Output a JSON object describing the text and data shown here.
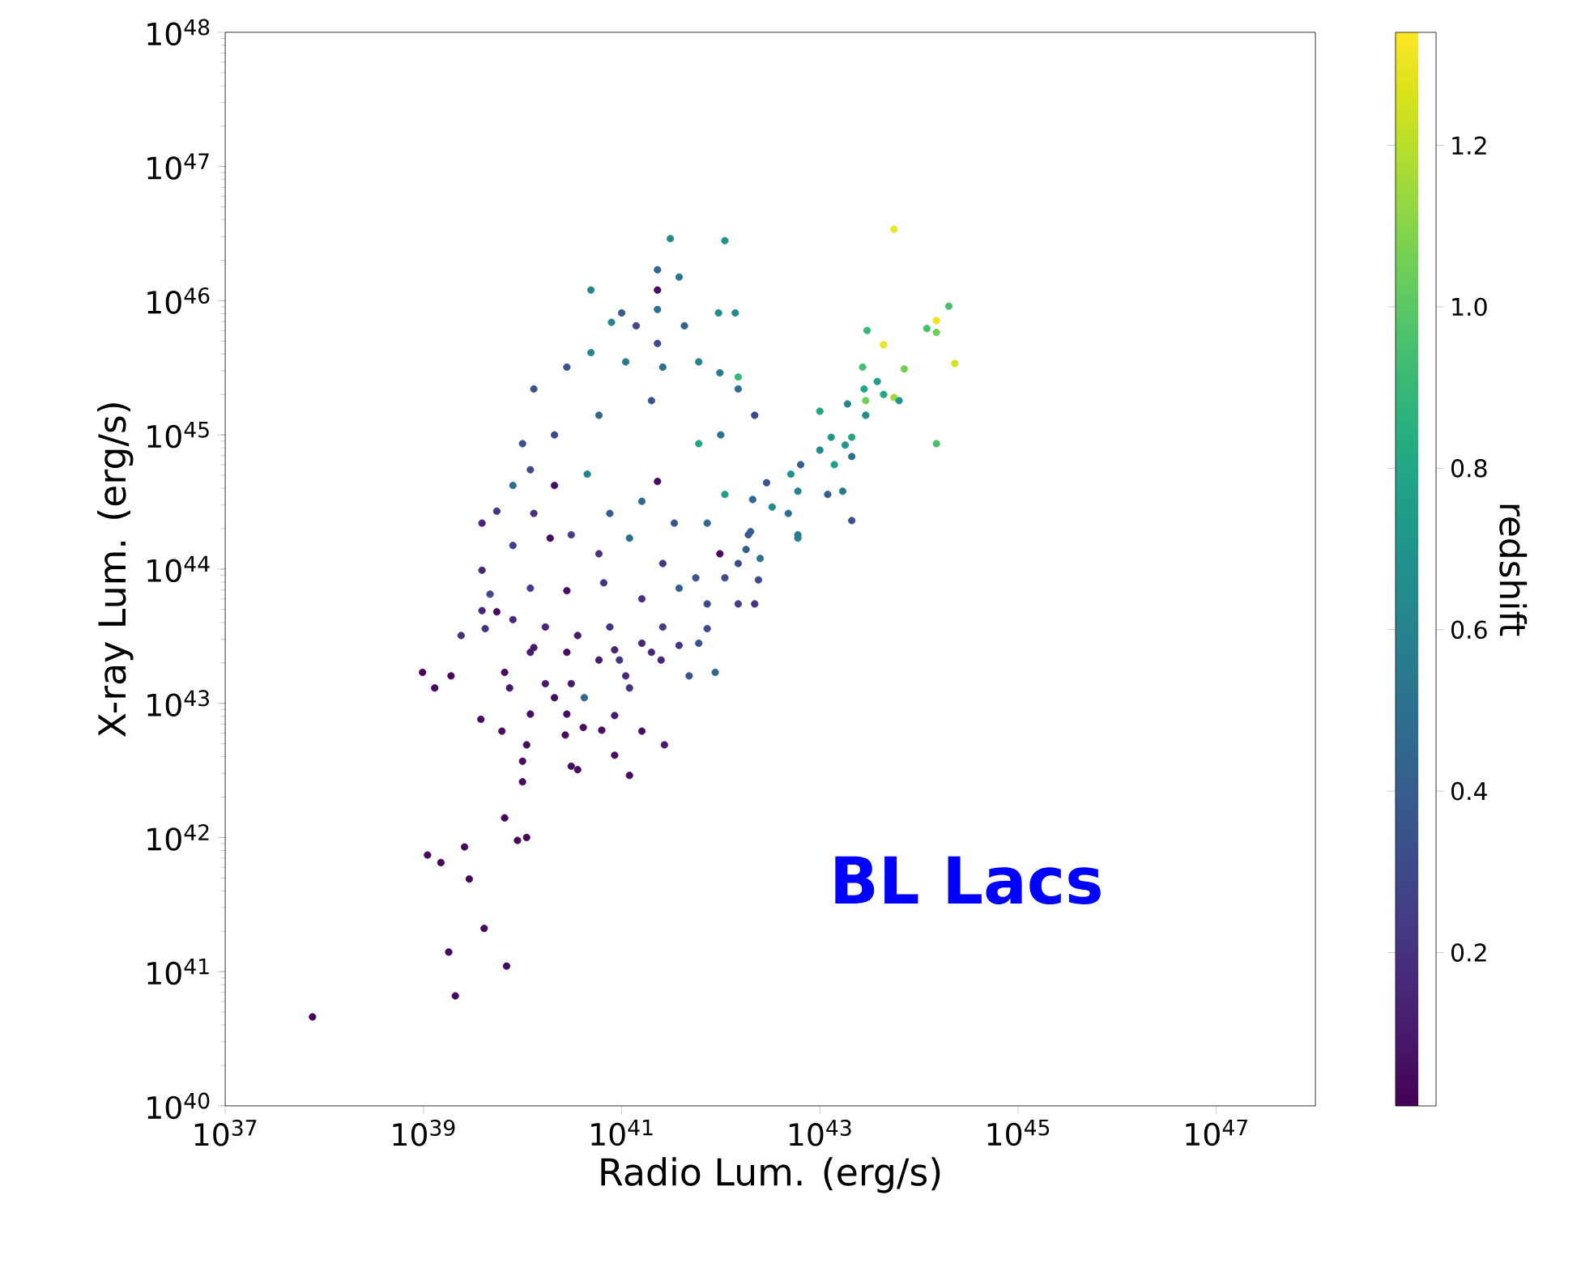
{
  "chart_data": {
    "type": "scatter",
    "xlabel": "Radio Lum. (erg/s)",
    "ylabel": "X-ray Lum. (erg/s)",
    "clabel": "redshift",
    "annotations": [
      "BL Lacs"
    ],
    "log": "xy",
    "marker": "circle",
    "xlim": [
      1e+37,
      1e+48
    ],
    "ylim": [
      1e+40,
      1e+48
    ],
    "xticks": [
      {
        "value": 1e+37,
        "label": "10$^{37}$"
      },
      {
        "value": 1e+39,
        "label": "10$^{39}$"
      },
      {
        "value": 1e+41,
        "label": "10$^{41}$"
      },
      {
        "value": 1e+43,
        "label": "10$^{43}$"
      },
      {
        "value": 1e+45,
        "label": "10$^{45}$"
      },
      {
        "value": 1e+47,
        "label": "10$^{47}$"
      }
    ],
    "yticks": [
      {
        "value": 1e+40,
        "label": "10$^{40}$"
      },
      {
        "value": 1e+41,
        "label": "10$^{41}$"
      },
      {
        "value": 1e+42,
        "label": "10$^{42}$"
      },
      {
        "value": 1e+43,
        "label": "10$^{43}$"
      },
      {
        "value": 1e+44,
        "label": "10$^{44}$"
      },
      {
        "value": 1e+45,
        "label": "10$^{45}$"
      },
      {
        "value": 1e+46,
        "label": "10$^{46}$"
      },
      {
        "value": 1e+47,
        "label": "10$^{47}$"
      },
      {
        "value": 1e+48,
        "label": "10$^{48}$"
      }
    ],
    "clim": [
      0.01,
      1.34
    ],
    "cticks": [
      0.2,
      0.4,
      0.6,
      0.8,
      {
        "value": 1.0,
        "label": "1.0"
      },
      1.2
    ],
    "x": [
      7.6e+37,
      2.1e+39,
      1.8e+39,
      6.9e+39,
      4.1e+39,
      1.1e+39,
      1.5e+39,
      2.6e+39,
      2.9e+39,
      6.6e+39,
      8.9e+39,
      1.1e+40,
      9.8e+38,
      1.3e+39,
      1.9e+39,
      6.6e+39,
      3.8e+39,
      6.2e+39,
      1.1e+40,
      1e+40,
      1e+40,
      2.7e+40,
      3.1e+40,
      3.6e+40,
      8.5e+40,
      1.2e+41,
      4.1e+40,
      6.3e+40,
      1.6e+41,
      2.7e+41,
      2.8e+40,
      1.2e+40,
      8.5e+40,
      4.8e+41,
      8.8e+41,
      4.2e+40,
      2.5e+41,
      1.7e+40,
      2.1e+40,
      3.1e+40,
      1.1e+41,
      1.2e+41,
      5.9e+40,
      9.5e+40,
      1.2e+40,
      7.4e+39,
      3.1e+41,
      1.1e+42,
      2.3e+41,
      2.3e+41,
      3.8e+41,
      4.9e+40,
      1e+41,
      2.3e+41,
      9.5e+41,
      1.4e+42,
      7.9e+40,
      1.4e+41,
      4.3e+41,
      2.3e+41,
      4.9e+40,
      2.8e+40,
      1.3e+40,
      1.5e+42,
      9.8e+41,
      6e+41,
      2.6e+41,
      1.1e+41,
      2.2e+42,
      1e+40,
      2.1e+40,
      5.9e+40,
      2e+41,
      6e+41,
      1e+42,
      6.4e+42,
      5.1e+42,
      6e+42,
      2.9e+42,
      1.1e+42,
      2.3e+41,
      4.5e+40,
      2.1e+40,
      8e+39,
      1.2e+40,
      3.9e+39,
      5.5e+39,
      1.3e+40,
      3.1e+40,
      7.6e+40,
      1.6e+41,
      3.4e+41,
      7.3e+41,
      1.9e+42,
      6e+42,
      9.8e+41,
      1.5e+42,
      3.9e+39,
      8e+39,
      1.9e+40,
      5.9e+40,
      1.2e+41,
      2.6e+41,
      5.6e+41,
      1.1e+42,
      2.4e+42,
      4.7e+39,
      1.2e+40,
      2.8e+40,
      6.6e+40,
      1.6e+41,
      3.8e+41,
      7.3e+41,
      1.5e+42,
      2.2e+42,
      3.9e+39,
      5.5e+39,
      8e+39,
      2.4e+39,
      4.2e+39,
      1.7e+40,
      3.6e+40,
      7.6e+40,
      1.6e+41,
      2.6e+41,
      7.3e+41,
      1.3e+40,
      2.8e+40,
      8.5e+40,
      2e+41,
      3.8e+41,
      6e+41,
      5.6e+43,
      2e+44,
      1.5e+44,
      1.2e+44,
      1.5e+44,
      3e+43,
      4.4e+43,
      2.3e+44,
      2.7e+43,
      7.1e+43,
      2.8e+43,
      3.8e+43,
      4.4e+43,
      2.9e+43,
      5.6e+43,
      6.3e+43,
      1.9e+43,
      2.9e+43,
      1e+43,
      1.5e+44,
      1.3e+43,
      2.1e+43,
      1e+43,
      1.8e+43,
      1.4e+43,
      2.1e+43,
      1.2e+43,
      1.7e+43,
      2.1e+43,
      2.1e+42,
      3.3e+42,
      4.8e+42,
      6e+42,
      1.5e+42,
      2e+42,
      1.8e+42,
      2.5e+42
    ],
    "values": [
      4.6e+40,
      6.6e+40,
      1.4e+41,
      1.1e+41,
      2.1e+41,
      7.4e+41,
      6.5e+41,
      8.5e+41,
      4.9e+41,
      1.4e+42,
      9.5e+41,
      1e+42,
      1.7e+43,
      1.3e+43,
      1.6e+43,
      1.7e+43,
      7.6e+42,
      6.2e+42,
      4.9e+42,
      3.7e+42,
      2.6e+42,
      5.8e+42,
      3.4e+42,
      3.2e+42,
      4.1e+42,
      2.9e+42,
      6.6e+42,
      6.3e+42,
      6.2e+42,
      4.9e+42,
      8.3e+42,
      8.3e+42,
      8.1e+42,
      1.6e+43,
      1.7e+43,
      1.1e+43,
      2.1e+43,
      1.4e+43,
      1.1e+43,
      1.4e+43,
      1.6e+43,
      1.3e+43,
      2.1e+43,
      2.1e+43,
      2.4e+43,
      1.3e+43,
      2.9e+46,
      2.8e+46,
      1.7e+46,
      1.2e+46,
      1.5e+46,
      1.2e+46,
      8.1e+45,
      8.6e+45,
      8.1e+45,
      8.1e+45,
      6.9e+45,
      6.5e+45,
      6.5e+45,
      4.8e+45,
      4.1e+45,
      3.2e+45,
      2.2e+45,
      2.7e+45,
      2.9e+45,
      3.5e+45,
      3.2e+45,
      3.5e+45,
      1.4e+45,
      8.6e+44,
      1e+45,
      1.4e+45,
      1.8e+45,
      8.6e+44,
      1e+45,
      6e+44,
      5.1e+44,
      3.8e+44,
      4.4e+44,
      3.6e+44,
      4.5e+44,
      5.1e+44,
      4.2e+44,
      4.2e+44,
      5.5e+44,
      2.2e+44,
      2.7e+44,
      2.6e+44,
      1.8e+44,
      2.6e+44,
      3.2e+44,
      2.2e+44,
      2.2e+44,
      1.8e+44,
      1.7e+44,
      1.3e+44,
      1.1e+44,
      9.8e+43,
      1.5e+44,
      1.7e+44,
      1.3e+44,
      1.7e+44,
      1.1e+44,
      8.6e+43,
      8.6e+43,
      8.3e+43,
      6.5e+43,
      7.2e+43,
      6.9e+43,
      7.9e+43,
      6e+43,
      7.2e+43,
      5.5e+43,
      5.5e+43,
      5.5e+43,
      4.9e+43,
      4.8e+43,
      4.2e+43,
      3.2e+43,
      3.6e+43,
      3.7e+43,
      3.2e+43,
      3.7e+43,
      2.8e+43,
      3.7e+43,
      3.6e+43,
      2.6e+43,
      2.4e+43,
      2.5e+43,
      2.4e+43,
      2.7e+43,
      2.8e+43,
      3.4e+46,
      9.1e+45,
      7.1e+45,
      6.2e+45,
      5.8e+45,
      6e+45,
      4.7e+45,
      3.4e+45,
      3.2e+45,
      3.1e+45,
      2.2e+45,
      2.5e+45,
      2e+45,
      1.8e+45,
      1.9e+45,
      1.8e+45,
      1.7e+45,
      1.4e+45,
      1.5e+45,
      8.6e+44,
      9.6e+44,
      9.6e+44,
      7.7e+44,
      8.4e+44,
      6e+44,
      6.9e+44,
      3.6e+44,
      3.8e+44,
      2.3e+44,
      3.3e+44,
      2.9e+44,
      2.6e+44,
      1.8e+44,
      2.2e+45,
      1.9e+44,
      1.4e+44,
      1.2e+44
    ],
    "cvalues": [
      0.02,
      0.03,
      0.03,
      0.03,
      0.03,
      0.03,
      0.03,
      0.03,
      0.03,
      0.03,
      0.03,
      0.03,
      0.03,
      0.03,
      0.03,
      0.05,
      0.05,
      0.05,
      0.05,
      0.05,
      0.05,
      0.05,
      0.05,
      0.05,
      0.05,
      0.05,
      0.05,
      0.05,
      0.05,
      0.1,
      0.05,
      0.05,
      0.1,
      0.35,
      0.45,
      0.45,
      0.15,
      0.1,
      0.05,
      0.1,
      0.15,
      0.2,
      0.1,
      0.2,
      0.1,
      0.1,
      0.65,
      0.7,
      0.45,
      0.05,
      0.55,
      0.6,
      0.4,
      0.5,
      0.65,
      0.65,
      0.6,
      0.3,
      0.45,
      0.3,
      0.6,
      0.35,
      0.35,
      0.9,
      0.55,
      0.6,
      0.5,
      0.55,
      0.3,
      0.35,
      0.3,
      0.45,
      0.35,
      0.8,
      0.5,
      0.4,
      0.7,
      0.6,
      0.35,
      0.75,
      0.05,
      0.6,
      0.05,
      0.5,
      0.3,
      0.15,
      0.2,
      0.2,
      0.25,
      0.4,
      0.45,
      0.35,
      0.45,
      0.35,
      0.6,
      0.05,
      0.3,
      0.15,
      0.25,
      0.05,
      0.2,
      0.5,
      0.2,
      0.35,
      0.3,
      0.3,
      0.3,
      0.25,
      0.05,
      0.2,
      0.2,
      0.4,
      0.3,
      0.25,
      0.2,
      0.15,
      0.05,
      0.15,
      0.2,
      0.2,
      0.15,
      0.1,
      0.2,
      0.15,
      0.25,
      0.3,
      0.1,
      0.05,
      0.15,
      0.15,
      0.2,
      0.35,
      1.3,
      0.95,
      1.3,
      0.95,
      1.05,
      0.9,
      1.3,
      1.25,
      0.95,
      1.05,
      0.8,
      0.75,
      0.8,
      1.05,
      1.15,
      0.7,
      0.6,
      0.65,
      0.8,
      0.95,
      0.7,
      0.8,
      0.65,
      0.7,
      0.75,
      0.5,
      0.4,
      0.55,
      0.35,
      0.45,
      0.65,
      0.5,
      0.55,
      0.5,
      0.4,
      0.4,
      0.5
    ]
  }
}
